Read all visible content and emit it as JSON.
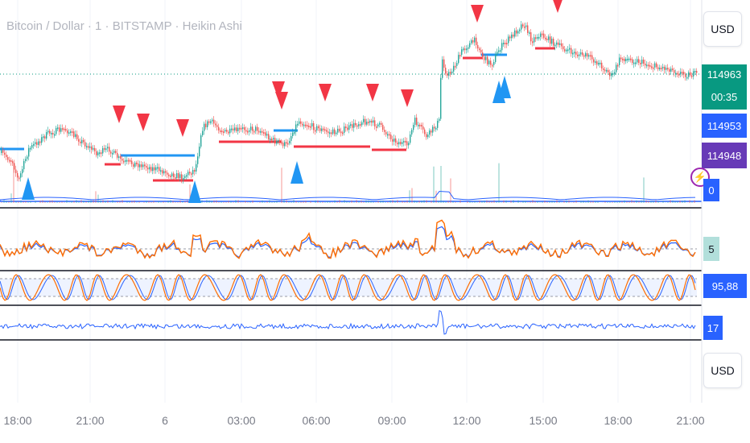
{
  "symbol_title": "Bitcoin / Dollar · 1 · BITSTAMP · Heikin Ashi",
  "currency_button_top": "USD",
  "currency_button_bottom": "USD",
  "price_tags": {
    "last_price": "114963",
    "countdown": "00:35",
    "price_blue": "114953",
    "price_purple": "114948",
    "volume_value": "0"
  },
  "indicator_values": {
    "oscillator_1": "5",
    "stoch_rsi": "95,88",
    "oscillator_3": "17"
  },
  "time_axis": [
    "18:00",
    "21:00",
    "6",
    "03:00",
    "06:00",
    "09:00",
    "12:00",
    "15:00",
    "18:00",
    "21:00"
  ],
  "colors": {
    "sell_signal": "#f23645",
    "buy_signal": "#2196f3",
    "last_price_tag": "#089981",
    "blue_tag": "#2962ff",
    "purple_tag": "#673ab7",
    "oscillator_line": "#ff6d00",
    "oscillator_signal": "#2962ff"
  },
  "signals": {
    "sell_count": 10,
    "buy_count": 5
  }
}
